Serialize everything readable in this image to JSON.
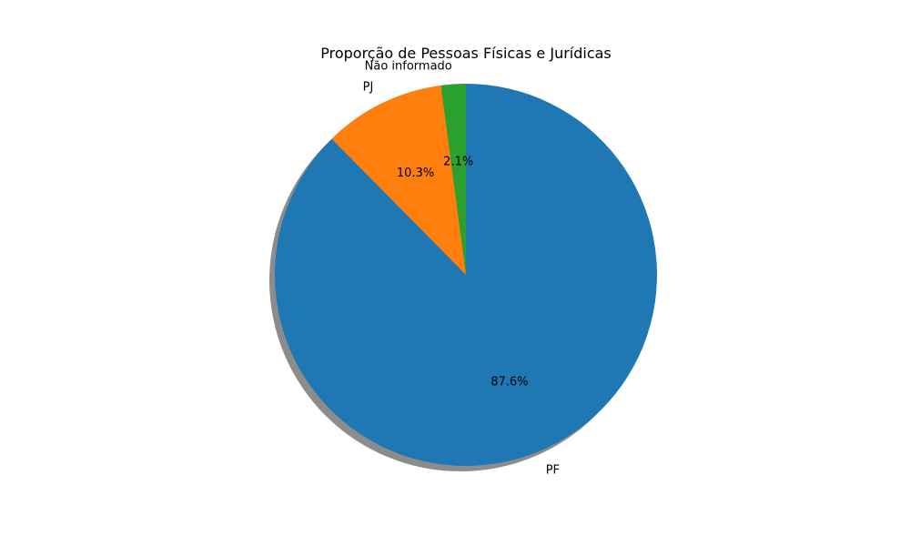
{
  "chart_data": {
    "type": "pie",
    "title": "Proporção de Pessoas Físicas e Jurídicas",
    "slices": [
      {
        "label": "Não informado",
        "value": 2.1,
        "pct_label": "2.1%",
        "color": "#2ca02c"
      },
      {
        "label": "PJ",
        "value": 10.3,
        "pct_label": "10.3%",
        "color": "#ff7f0e"
      },
      {
        "label": "PF",
        "value": 87.6,
        "pct_label": "87.6%",
        "color": "#1f77b4"
      }
    ],
    "start_angle": "top (90°)",
    "direction": "clockwise",
    "shadow": true
  }
}
